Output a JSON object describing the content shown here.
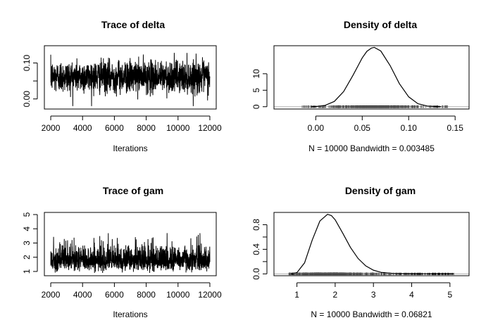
{
  "chart_data": [
    {
      "type": "line",
      "title": "Trace of delta",
      "xlabel": "Iterations",
      "ylabel": "",
      "xlim": [
        1600,
        12400
      ],
      "ylim": [
        -0.028,
        0.148
      ],
      "xticks": [
        2000,
        4000,
        6000,
        8000,
        10000,
        12000
      ],
      "yticks": [
        0.0,
        0.05,
        0.1
      ],
      "ytick_labels": [
        "0.00",
        "",
        "0.10"
      ],
      "series": [
        {
          "x_range": [
            2000,
            12000
          ],
          "mean": 0.062,
          "sd": 0.022,
          "min": -0.02,
          "max": 0.14
        }
      ],
      "color": "#000000"
    },
    {
      "type": "line",
      "title": "Density of delta",
      "xlabel": "N = 10000   Bandwidth = 0.003485",
      "ylabel": "",
      "xlim": [
        -0.045,
        0.165
      ],
      "ylim": [
        -0.7,
        18.5
      ],
      "xticks": [
        0.0,
        0.05,
        0.1,
        0.15
      ],
      "xtick_labels": [
        "0.00",
        "0.05",
        "0.10",
        "0.15"
      ],
      "yticks": [
        0,
        5,
        10
      ],
      "series": [
        {
          "x": [
            -0.005,
            0.0,
            0.01,
            0.02,
            0.03,
            0.04,
            0.05,
            0.055,
            0.06,
            0.063,
            0.07,
            0.08,
            0.09,
            0.1,
            0.11,
            0.12,
            0.13,
            0.135
          ],
          "y": [
            0.0,
            0.05,
            0.4,
            1.6,
            4.6,
            9.5,
            14.8,
            16.8,
            17.8,
            18.0,
            16.9,
            12.5,
            7.0,
            3.0,
            0.9,
            0.22,
            0.04,
            0.0
          ]
        }
      ],
      "rug_range": [
        -0.015,
        0.142
      ],
      "color": "#000000"
    },
    {
      "type": "line",
      "title": "Trace of gam",
      "xlabel": "Iterations",
      "ylabel": "",
      "xlim": [
        1600,
        12400
      ],
      "ylim": [
        0.7,
        5.15
      ],
      "xticks": [
        2000,
        4000,
        6000,
        8000,
        10000,
        12000
      ],
      "yticks": [
        1,
        2,
        3,
        4,
        5
      ],
      "series": [
        {
          "x_range": [
            2000,
            12000
          ],
          "mode": 1.8,
          "min": 0.9,
          "max": 5.1
        }
      ],
      "color": "#000000"
    },
    {
      "type": "line",
      "title": "Density of gam",
      "xlabel": "N = 10000   Bandwidth = 0.06821",
      "ylabel": "",
      "xlim": [
        0.4,
        5.5
      ],
      "ylim": [
        -0.03,
        1.0
      ],
      "xticks": [
        1,
        2,
        3,
        4,
        5
      ],
      "yticks": [
        0.0,
        0.2,
        0.4,
        0.6,
        0.8
      ],
      "ytick_labels": [
        "0.0",
        "",
        "0.4",
        "",
        "0.8"
      ],
      "series": [
        {
          "x": [
            0.85,
            1.0,
            1.2,
            1.4,
            1.6,
            1.8,
            1.9,
            2.0,
            2.2,
            2.4,
            2.6,
            2.8,
            3.0,
            3.2,
            3.5,
            3.8,
            4.2,
            5.1
          ],
          "y": [
            0.0,
            0.02,
            0.18,
            0.55,
            0.86,
            0.97,
            0.95,
            0.88,
            0.66,
            0.43,
            0.25,
            0.13,
            0.06,
            0.025,
            0.008,
            0.003,
            0.001,
            0.0
          ]
        }
      ],
      "rug_range": [
        0.75,
        5.1
      ],
      "color": "#000000"
    }
  ]
}
